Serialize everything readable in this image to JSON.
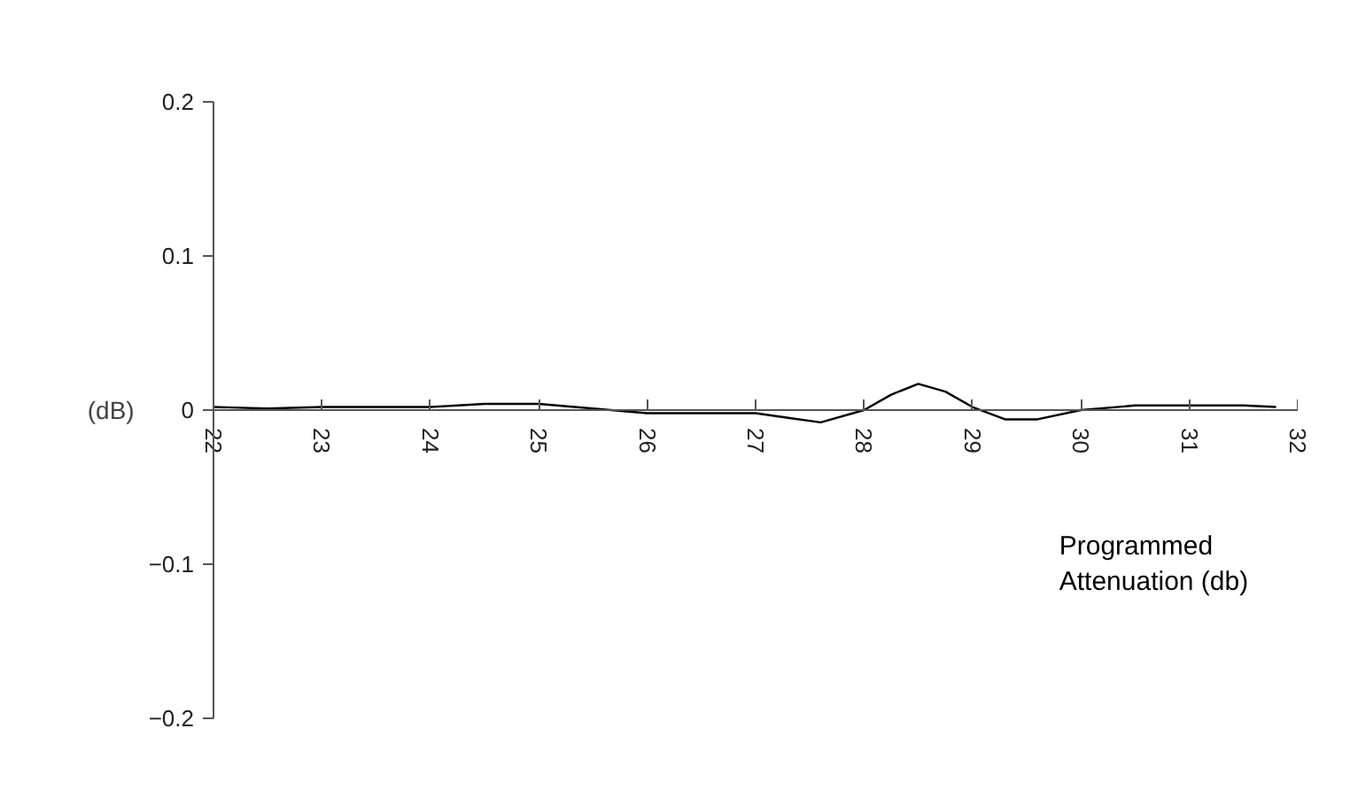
{
  "chart_data": {
    "type": "line",
    "xlabel": "Programmed Attenuation (db)",
    "ylabel": "(dB)",
    "x": [
      22,
      22.5,
      23,
      23.5,
      24,
      24.5,
      25,
      25.5,
      26,
      26.5,
      27,
      27.3,
      27.6,
      28,
      28.25,
      28.5,
      28.75,
      29,
      29.3,
      29.6,
      30,
      30.5,
      31,
      31.5,
      31.8
    ],
    "series": [
      {
        "color": "#000000",
        "values": [
          0.002,
          0.001,
          0.002,
          0.002,
          0.002,
          0.004,
          0.004,
          0.001,
          -0.002,
          -0.002,
          -0.002,
          -0.005,
          -0.008,
          0,
          0.01,
          0.017,
          0.012,
          0.002,
          -0.006,
          -0.006,
          0,
          0.003,
          0.003,
          0.003,
          0.002
        ]
      }
    ],
    "xlim": [
      22,
      32
    ],
    "ylim": [
      -0.2,
      0.2
    ],
    "xticks": [
      22,
      23,
      24,
      25,
      26,
      27,
      28,
      29,
      30,
      31,
      32
    ],
    "yticks": [
      -0.2,
      -0.1,
      0,
      0.1,
      0.2
    ],
    "grid": false,
    "marker": "none",
    "line_style": "solid"
  }
}
